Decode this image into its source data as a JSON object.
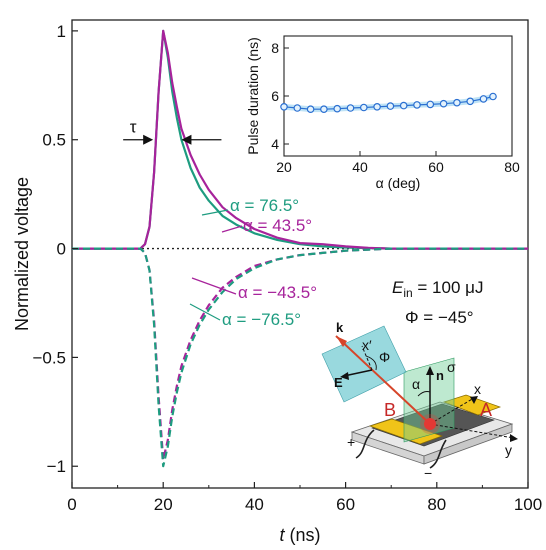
{
  "chart_data": [
    {
      "type": "line",
      "ylabel": "Normalized voltage",
      "xlabel_italic": "t",
      "xlabel_unit": " (ns)",
      "xlim": [
        0,
        100
      ],
      "ylim": [
        -1.1,
        1.05
      ],
      "x_ticks": [
        "0",
        "20",
        "40",
        "60",
        "80",
        "100"
      ],
      "y_ticks": [
        "1",
        "0.5",
        "0",
        "−0.5",
        "−1"
      ],
      "colors": {
        "green": "#1e9c80",
        "magenta": "#a7239b",
        "dark": "#3b3b4a"
      },
      "series": [
        {
          "name": "α = 76.5°",
          "color": "#1e9c80",
          "style": "solid",
          "x": [
            0,
            15,
            16,
            17,
            18,
            19,
            20,
            21,
            22,
            23,
            24,
            26,
            28,
            30,
            33,
            36,
            40,
            45,
            50,
            55,
            60,
            65,
            70,
            80,
            100
          ],
          "y": [
            0,
            0,
            0.02,
            0.1,
            0.35,
            0.72,
            1.0,
            0.88,
            0.72,
            0.6,
            0.5,
            0.37,
            0.28,
            0.22,
            0.15,
            0.11,
            0.07,
            0.04,
            0.02,
            0.01,
            0.005,
            0.002,
            0,
            0,
            0
          ]
        },
        {
          "name": "α = 43.5°",
          "color": "#a7239b",
          "style": "solid",
          "x": [
            0,
            15,
            16,
            17,
            18,
            19,
            20,
            21,
            22,
            23,
            24,
            26,
            28,
            30,
            33,
            36,
            40,
            45,
            50,
            55,
            60,
            65,
            70,
            80,
            100
          ],
          "y": [
            0,
            0,
            0.02,
            0.1,
            0.35,
            0.72,
            1.0,
            0.9,
            0.76,
            0.65,
            0.55,
            0.43,
            0.34,
            0.27,
            0.19,
            0.14,
            0.09,
            0.05,
            0.025,
            0.02,
            0.01,
            0.003,
            0,
            0,
            0
          ]
        },
        {
          "name": "α = −43.5°",
          "color": "#a7239b",
          "style": "dashed",
          "x": [
            0,
            15,
            16,
            17,
            18,
            19,
            20,
            21,
            22,
            23,
            24,
            26,
            28,
            30,
            33,
            36,
            40,
            45,
            50,
            55,
            60,
            65,
            70,
            80,
            100
          ],
          "y": [
            0,
            0,
            -0.02,
            -0.1,
            -0.33,
            -0.68,
            -0.97,
            -0.88,
            -0.74,
            -0.63,
            -0.54,
            -0.42,
            -0.33,
            -0.26,
            -0.18,
            -0.13,
            -0.08,
            -0.05,
            -0.03,
            -0.02,
            -0.01,
            -0.005,
            0,
            0,
            0
          ]
        },
        {
          "name": "α = −76.5°",
          "color": "#1e9c80",
          "style": "dashed",
          "x": [
            0,
            15,
            16,
            17,
            18,
            19,
            20,
            21,
            22,
            23,
            24,
            26,
            28,
            30,
            33,
            36,
            40,
            45,
            50,
            55,
            60,
            65,
            70,
            80,
            100
          ],
          "y": [
            0,
            0,
            -0.02,
            -0.1,
            -0.35,
            -0.72,
            -1.0,
            -0.91,
            -0.77,
            -0.66,
            -0.57,
            -0.44,
            -0.35,
            -0.28,
            -0.2,
            -0.14,
            -0.09,
            -0.05,
            -0.03,
            -0.02,
            -0.01,
            -0.005,
            0,
            0,
            0
          ]
        }
      ],
      "annotations": {
        "tau": "τ",
        "tau_y": 0.5,
        "tau_x_left": 17.8,
        "tau_x_right": 24.0,
        "e_in_symbol": "E",
        "e_in_sub": "in",
        "e_in_value": " = 100 μJ",
        "phi": "Φ = −45°"
      },
      "zero_line": "dotted"
    },
    {
      "type": "scatter",
      "xlabel": "α (deg)",
      "ylabel": "Pulse duration (ns)",
      "xlim": [
        20,
        80
      ],
      "ylim": [
        3.5,
        8.5
      ],
      "x_ticks": [
        "20",
        "40",
        "60",
        "80"
      ],
      "y_ticks": [
        "8",
        "6",
        "4"
      ],
      "marker_color": "#2a6fd1",
      "band_color": "#bfe3f6",
      "x": [
        20,
        23.5,
        27,
        30.5,
        34,
        37.5,
        41,
        44.5,
        48,
        51.5,
        55,
        58.5,
        62,
        65.5,
        69,
        72.5,
        75
      ],
      "y": [
        5.55,
        5.5,
        5.45,
        5.45,
        5.47,
        5.5,
        5.52,
        5.55,
        5.58,
        5.6,
        5.63,
        5.65,
        5.68,
        5.72,
        5.78,
        5.88,
        5.98
      ]
    }
  ],
  "schematic": {
    "k": "k",
    "x_prime": "x′",
    "phi": "Φ",
    "E": "E",
    "n": "n",
    "sigma": "σ",
    "alpha": "α",
    "x": "x",
    "y": "y",
    "B": "B",
    "A": "A",
    "plus": "+",
    "minus": "−"
  }
}
